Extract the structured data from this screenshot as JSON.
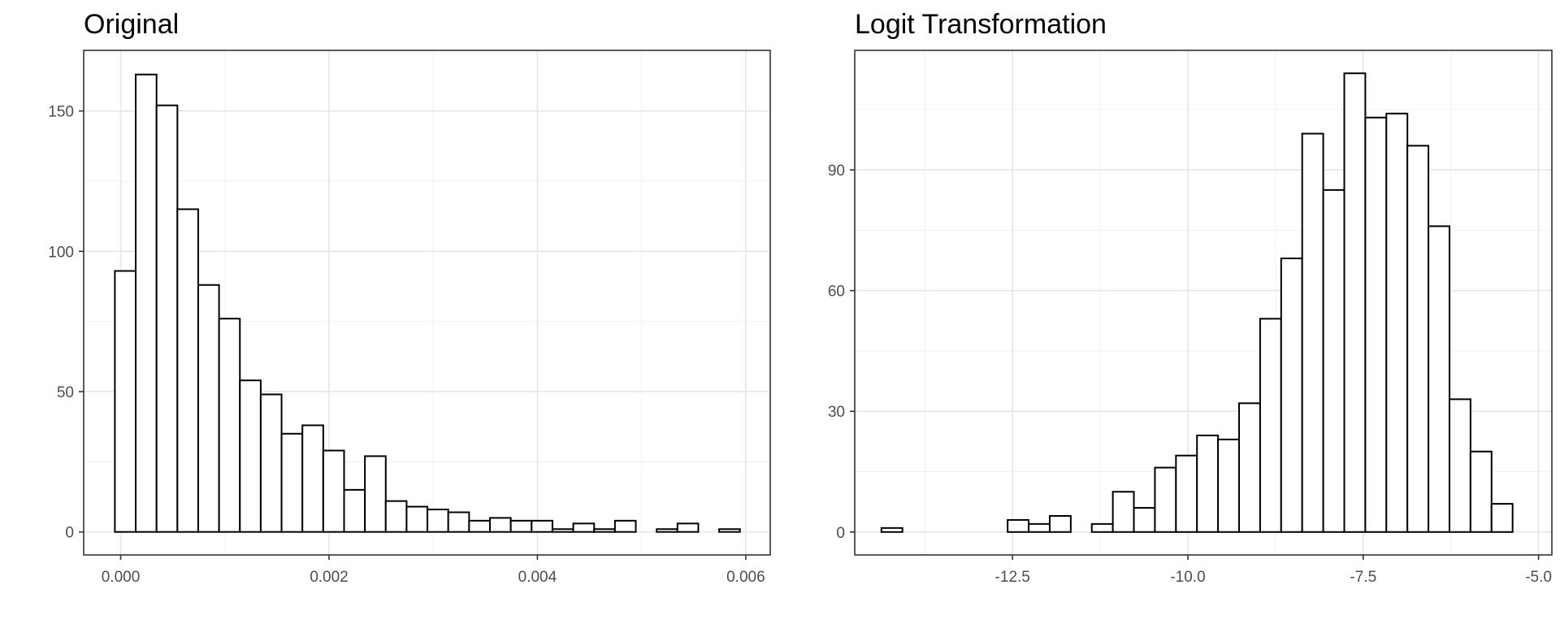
{
  "chart_data": [
    {
      "type": "bar",
      "title": "Original",
      "xlabel": "",
      "ylabel": "",
      "xlim": [
        -0.000355,
        0.006235
      ],
      "ylim": [
        -8.2,
        171.6
      ],
      "x_ticks": [
        0.0,
        0.002,
        0.004,
        0.006
      ],
      "x_tick_labels": [
        "0.000",
        "0.002",
        "0.004",
        "0.006"
      ],
      "y_ticks": [
        0,
        50,
        100,
        150
      ],
      "y_tick_labels": [
        "0",
        "50",
        "100",
        "150"
      ],
      "bin_start": -5.56e-05,
      "bin_width": 0.0002,
      "counts": [
        93,
        163,
        152,
        115,
        88,
        76,
        54,
        49,
        35,
        38,
        29,
        15,
        27,
        11,
        9,
        8,
        7,
        4,
        5,
        4,
        4,
        1,
        3,
        1,
        4,
        0,
        1,
        3,
        0,
        1
      ],
      "grid": true,
      "legend": "none"
    },
    {
      "type": "bar",
      "title": "Logit Transformation",
      "xlabel": "",
      "ylabel": "",
      "xlim": [
        -14.75,
        -4.81
      ],
      "ylim": [
        -5.7,
        119.7
      ],
      "x_ticks": [
        -12.5,
        -10.0,
        -7.5,
        -5.0
      ],
      "x_tick_labels": [
        "-12.5",
        "-10.0",
        "-7.5",
        "-5.0"
      ],
      "y_ticks": [
        0,
        30,
        60,
        90
      ],
      "y_tick_labels": [
        "0",
        "30",
        "60",
        "90"
      ],
      "bin_start": -14.37,
      "bin_width": 0.3,
      "counts": [
        1,
        0,
        0,
        0,
        0,
        0,
        3,
        2,
        4,
        0,
        2,
        10,
        6,
        16,
        19,
        24,
        23,
        32,
        53,
        68,
        99,
        85,
        114,
        103,
        104,
        96,
        76,
        33,
        20,
        7
      ],
      "grid": true,
      "legend": "none"
    }
  ]
}
